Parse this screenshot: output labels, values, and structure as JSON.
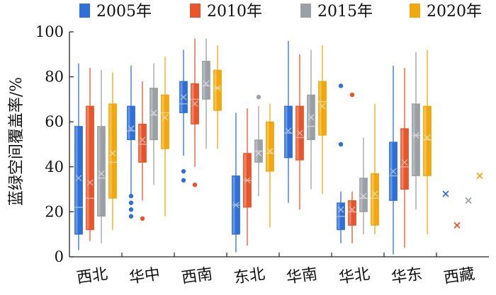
{
  "chart_data": {
    "type": "boxplot",
    "ylabel": "蓝绿空间覆盖率/%",
    "ylim": [
      0,
      100
    ],
    "yticks": [
      0,
      20,
      40,
      60,
      80,
      100
    ],
    "grid": false,
    "legend_position": "top",
    "categories": [
      "西北",
      "华中",
      "西南",
      "东北",
      "华南",
      "华北",
      "华东",
      "西藏"
    ],
    "series": [
      {
        "name": "2005年",
        "color": "#2f6fd8",
        "boxes": [
          {
            "min": 3,
            "q1": 10,
            "median": 22,
            "q3": 58,
            "max": 86,
            "mean": 35,
            "outliers": []
          },
          {
            "min": 28,
            "q1": 52,
            "median": 56,
            "q3": 67,
            "max": 85,
            "mean": 57,
            "outliers": [
              18,
              21,
              24,
              27
            ]
          },
          {
            "min": 45,
            "q1": 64,
            "median": 68,
            "q3": 78,
            "max": 92,
            "mean": 71,
            "outliers": [
              34,
              38
            ]
          },
          {
            "min": 2,
            "q1": 10,
            "median": 23,
            "q3": 36,
            "max": 64,
            "mean": 23,
            "outliers": []
          },
          {
            "min": 24,
            "q1": 44,
            "median": 55,
            "q3": 67,
            "max": 96,
            "mean": 56,
            "outliers": []
          },
          {
            "min": 6,
            "q1": 12,
            "median": 18,
            "q3": 24,
            "max": 29,
            "mean": 21,
            "outliers": [
              50,
              76
            ]
          },
          {
            "min": 1,
            "q1": 25,
            "median": 36,
            "q3": 51,
            "max": 85,
            "mean": 38,
            "outliers": []
          },
          {
            "min": null,
            "q1": null,
            "median": null,
            "q3": null,
            "max": null,
            "mean": 28,
            "outliers": []
          }
        ]
      },
      {
        "name": "2010年",
        "color": "#e8552b",
        "boxes": [
          {
            "min": 7,
            "q1": 12,
            "median": 26,
            "q3": 67,
            "max": 84,
            "mean": 33,
            "outliers": []
          },
          {
            "min": 25,
            "q1": 42,
            "median": 50,
            "q3": 59,
            "max": 78,
            "mean": 52,
            "outliers": [
              17
            ]
          },
          {
            "min": 40,
            "q1": 59,
            "median": 70,
            "q3": 77,
            "max": 97,
            "mean": 68,
            "outliers": [
              32
            ]
          },
          {
            "min": 5,
            "q1": 22,
            "median": 34,
            "q3": 46,
            "max": 66,
            "mean": 34,
            "outliers": []
          },
          {
            "min": 21,
            "q1": 43,
            "median": 53,
            "q3": 67,
            "max": 90,
            "mean": 55,
            "outliers": []
          },
          {
            "min": 6,
            "q1": 14,
            "median": 20,
            "q3": 25,
            "max": 29,
            "mean": 21,
            "outliers": [
              72
            ]
          },
          {
            "min": 4,
            "q1": 30,
            "median": 40,
            "q3": 57,
            "max": 84,
            "mean": 42,
            "outliers": []
          },
          {
            "min": null,
            "q1": null,
            "median": null,
            "q3": null,
            "max": null,
            "mean": 14,
            "outliers": []
          }
        ]
      },
      {
        "name": "2015年",
        "color": "#9aa0a6",
        "boxes": [
          {
            "min": 6,
            "q1": 18,
            "median": 35,
            "q3": 58,
            "max": 83,
            "mean": 37,
            "outliers": []
          },
          {
            "min": 32,
            "q1": 52,
            "median": 63,
            "q3": 75,
            "max": 86,
            "mean": 64,
            "outliers": []
          },
          {
            "min": 48,
            "q1": 70,
            "median": 76,
            "q3": 87,
            "max": 97,
            "mean": 77,
            "outliers": []
          },
          {
            "min": 27,
            "q1": 42,
            "median": 47,
            "q3": 52,
            "max": 67,
            "mean": 46,
            "outliers": [
              71
            ]
          },
          {
            "min": 30,
            "q1": 52,
            "median": 58,
            "q3": 72,
            "max": 92,
            "mean": 62,
            "outliers": []
          },
          {
            "min": 10,
            "q1": 20,
            "median": 26,
            "q3": 35,
            "max": 53,
            "mean": 27,
            "outliers": []
          },
          {
            "min": 21,
            "q1": 36,
            "median": 54,
            "q3": 68,
            "max": 91,
            "mean": 54,
            "outliers": []
          },
          {
            "min": null,
            "q1": null,
            "median": null,
            "q3": null,
            "max": null,
            "mean": 25,
            "outliers": []
          }
        ]
      },
      {
        "name": "2020年",
        "color": "#f2a80c",
        "boxes": [
          {
            "min": 12,
            "q1": 26,
            "median": 42,
            "q3": 68,
            "max": 82,
            "mean": 46,
            "outliers": []
          },
          {
            "min": 18,
            "q1": 48,
            "median": 64,
            "q3": 72,
            "max": 89,
            "mean": 62,
            "outliers": []
          },
          {
            "min": 48,
            "q1": 65,
            "median": 75,
            "q3": 83,
            "max": 94,
            "mean": 75,
            "outliers": []
          },
          {
            "min": 13,
            "q1": 38,
            "median": 46,
            "q3": 60,
            "max": 68,
            "mean": 47,
            "outliers": []
          },
          {
            "min": 28,
            "q1": 54,
            "median": 69,
            "q3": 78,
            "max": 94,
            "mean": 67,
            "outliers": []
          },
          {
            "min": 10,
            "q1": 14,
            "median": 26,
            "q3": 37,
            "max": 68,
            "mean": 28,
            "outliers": []
          },
          {
            "min": 10,
            "q1": 36,
            "median": 52,
            "q3": 67,
            "max": 92,
            "mean": 53,
            "outliers": []
          },
          {
            "min": null,
            "q1": null,
            "median": null,
            "q3": null,
            "max": null,
            "mean": 36,
            "outliers": []
          }
        ]
      }
    ]
  }
}
